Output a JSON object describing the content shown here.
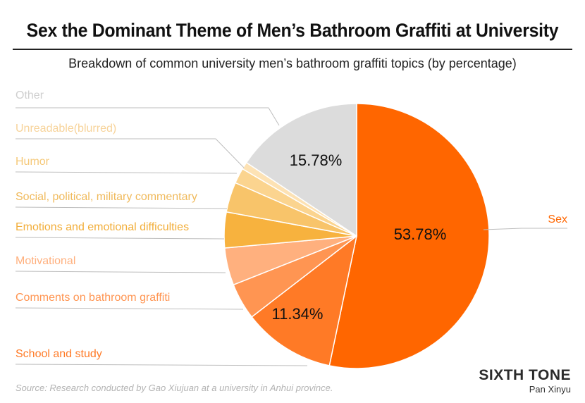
{
  "header": {
    "title": "Sex the Dominant Theme of Men’s Bathroom Graffiti at University",
    "subtitle": "Breakdown of common university men’s bathroom graffiti topics (by percentage)"
  },
  "footer": {
    "source": "Source: Research conducted by Gao Xiujuan at a university in Anhui province.",
    "brand": "SIXTH TONE",
    "author": "Pan Xinyu"
  },
  "chart_data": {
    "type": "pie",
    "start": "12 o'clock",
    "direction": "clockwise",
    "slices": [
      {
        "label": "Sex",
        "value": 53.78,
        "value_label": "53.78%",
        "color": "#FF6600",
        "label_color": "#FF6600"
      },
      {
        "label": "School and study",
        "value": 11.34,
        "value_label": "11.34%",
        "color": "#FF7A26",
        "label_color": "#FF7A26"
      },
      {
        "label": "Comments on bathroom graffiti",
        "value": 4.5,
        "color": "#FF9552",
        "label_color": "#FF9552"
      },
      {
        "label": "Motivational",
        "value": 4.6,
        "color": "#FFB07E",
        "label_color": "#FFB07E"
      },
      {
        "label": "Emotions and emotional difficulties",
        "value": 4.4,
        "color": "#F7B23E",
        "label_color": "#F2AE3A"
      },
      {
        "label": "Social, political, military commentary",
        "value": 3.7,
        "color": "#F8C46A",
        "label_color": "#F0BA5C"
      },
      {
        "label": "Humor",
        "value": 1.9,
        "color": "#FBD48F",
        "label_color": "#F5C878"
      },
      {
        "label": "Unreadable(blurred)",
        "value": 0.9,
        "color": "#FDE2B4",
        "label_color": "#F7D39A"
      },
      {
        "label": "Other",
        "value": 15.78,
        "value_label": "15.78%",
        "color": "#DCDCDC",
        "label_color": "#CFCFCF"
      }
    ]
  }
}
